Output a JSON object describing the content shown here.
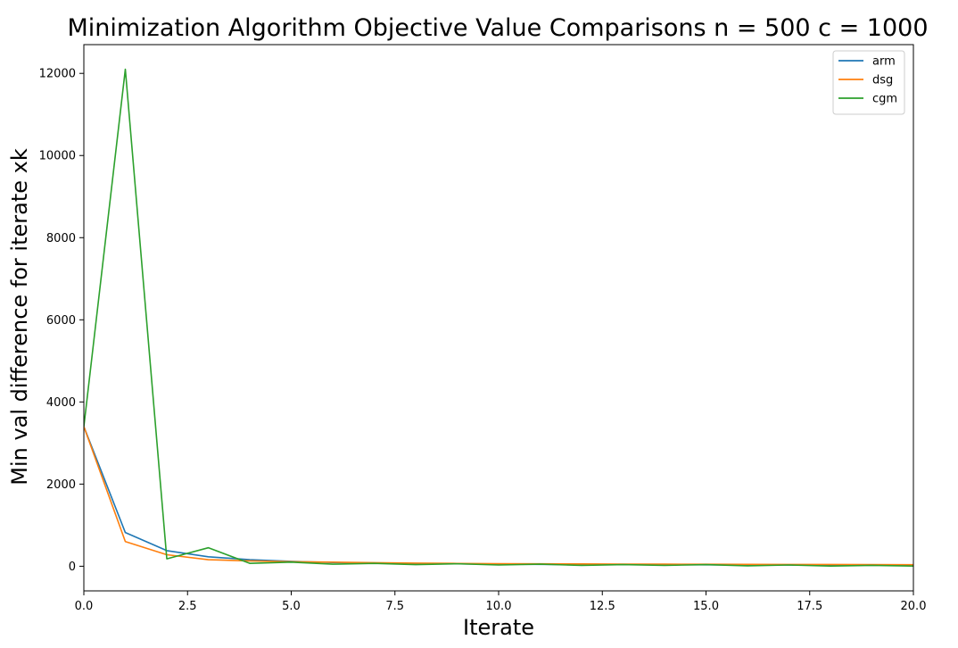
{
  "chart_data": {
    "type": "line",
    "title": "Minimization Algorithm Objective Value Comparisons n = 500 c = 1000",
    "xlabel": "Iterate",
    "ylabel": "Min val difference for iterate xk",
    "xlim": [
      0,
      20
    ],
    "ylim": [
      -600,
      12700
    ],
    "xticks": [
      0,
      2.5,
      5,
      7.5,
      10,
      12.5,
      15,
      17.5,
      20
    ],
    "xtick_labels": [
      "0.0",
      "2.5",
      "5.0",
      "7.5",
      "10.0",
      "12.5",
      "15.0",
      "17.5",
      "20.0"
    ],
    "yticks": [
      0,
      2000,
      4000,
      6000,
      8000,
      10000,
      12000
    ],
    "ytick_labels": [
      "0",
      "2000",
      "4000",
      "6000",
      "8000",
      "10000",
      "12000"
    ],
    "grid": false,
    "legend_position": "top-right",
    "x": [
      0,
      1,
      2,
      3,
      4,
      5,
      6,
      7,
      8,
      9,
      10,
      11,
      12,
      13,
      14,
      15,
      16,
      17,
      18,
      19,
      20
    ],
    "series": [
      {
        "name": "arm",
        "color": "#1f77b4",
        "values": [
          3400,
          820,
          380,
          230,
          160,
          120,
          90,
          75,
          65,
          58,
          50,
          46,
          42,
          40,
          37,
          35,
          32,
          30,
          28,
          26,
          25
        ]
      },
      {
        "name": "dsg",
        "color": "#ff7f0e",
        "values": [
          3400,
          600,
          280,
          160,
          130,
          110,
          100,
          85,
          75,
          68,
          62,
          58,
          55,
          52,
          50,
          48,
          46,
          44,
          42,
          40,
          38
        ]
      },
      {
        "name": "cgm",
        "color": "#2ca02c",
        "values": [
          3400,
          12100,
          180,
          450,
          70,
          100,
          50,
          70,
          40,
          60,
          30,
          50,
          20,
          40,
          20,
          40,
          10,
          30,
          5,
          20,
          5
        ]
      }
    ]
  }
}
